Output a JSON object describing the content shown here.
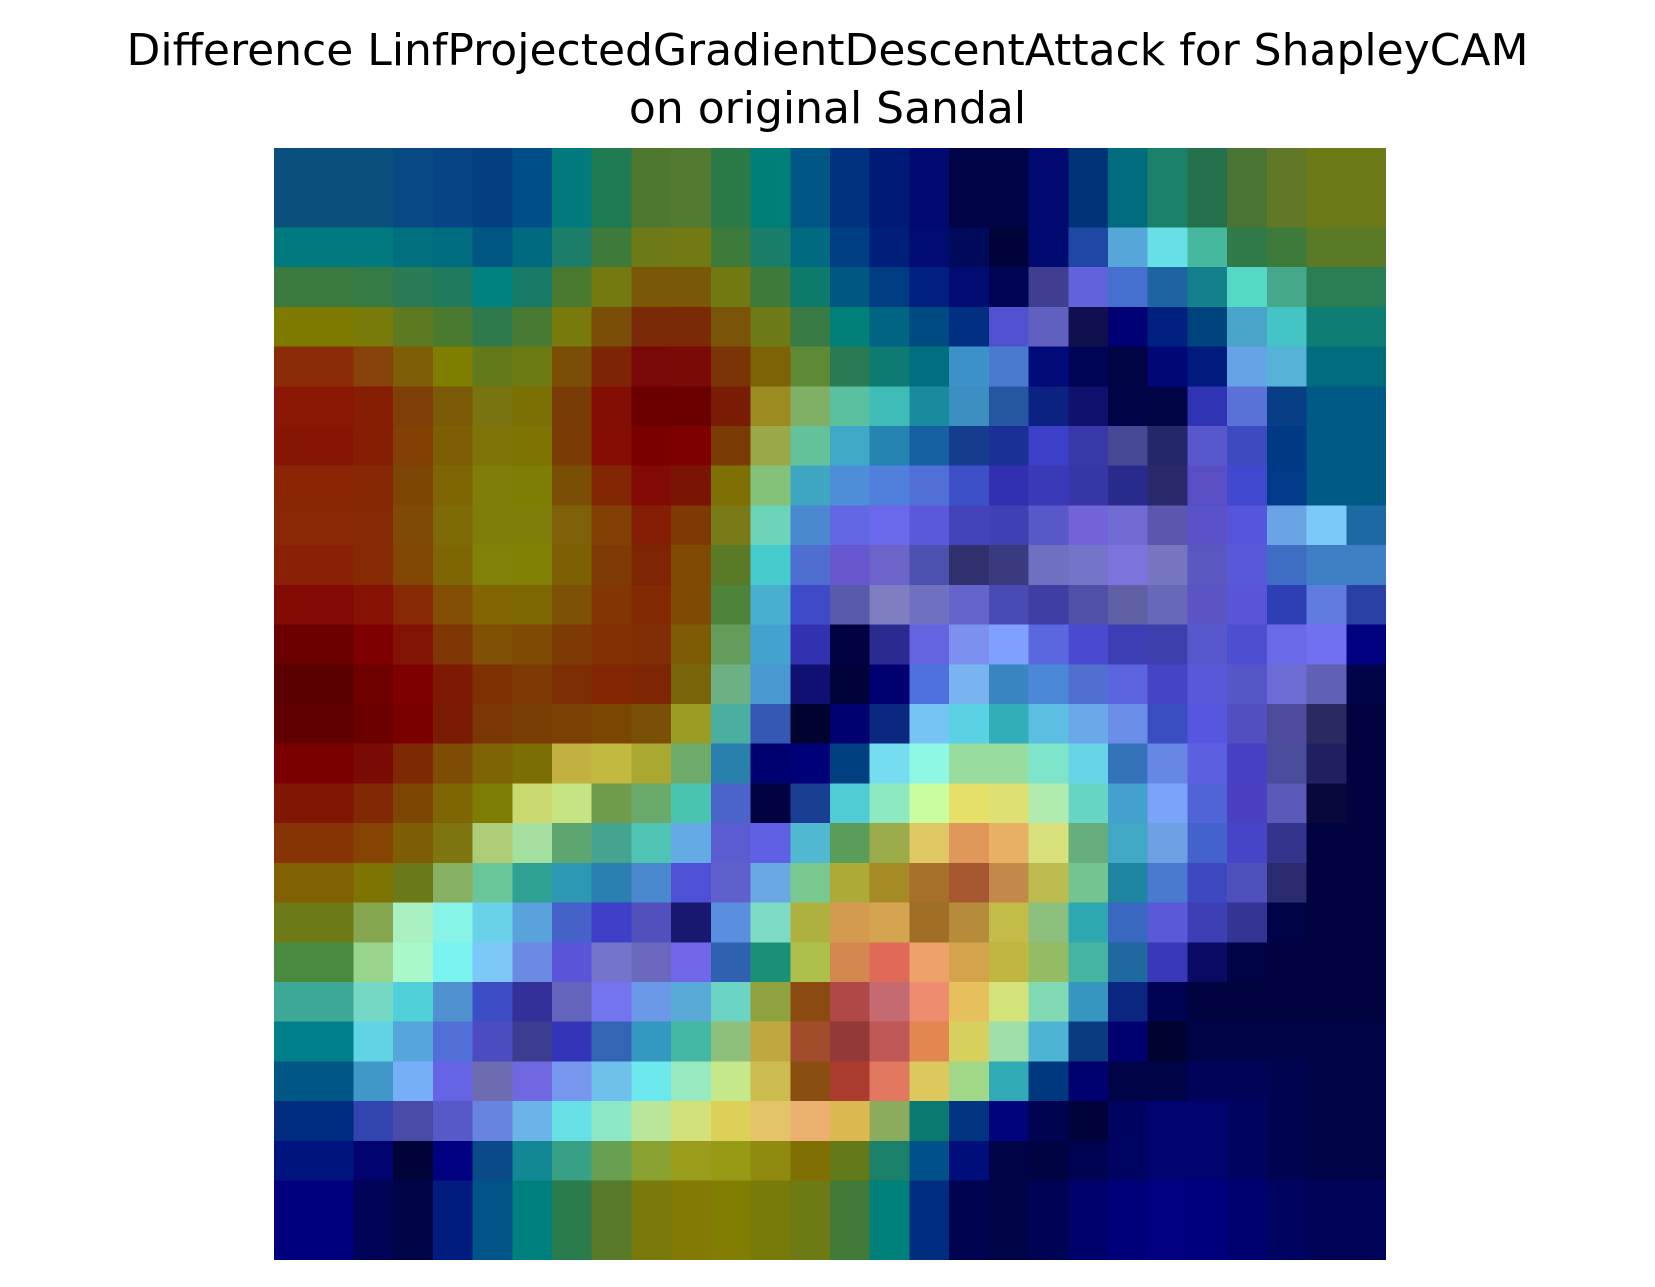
{
  "chart_data": {
    "type": "heatmap",
    "title": "Difference LinfProjectedGradientDescentAttack for ShapleyCAM",
    "subtitle": "on original Sandal",
    "xlabel": "",
    "ylabel": "",
    "axes_visible": false,
    "grid": false,
    "legend": "none",
    "rows": 28,
    "cols": 28,
    "colormap": "jet (blended over image)",
    "hex_grid": [
      [
        "#0a4f7e",
        "#0a4f7e",
        "#0a4f7e",
        "#084883",
        "#064485",
        "#043f82",
        "#004e88",
        "#007a7c",
        "#1e7a50",
        "#4e7830",
        "#527a30",
        "#2a7a48",
        "#007e78",
        "#005684",
        "#003280",
        "#001a78",
        "#000a70",
        "#000346",
        "#000346",
        "#000a70",
        "#003478",
        "#006c7e",
        "#1a8068",
        "#24704a",
        "#4a7434",
        "#607828",
        "#6e7a18",
        "#6e7a18"
      ],
      [
        "#0a4f7e",
        "#0a4f7e",
        "#0a4f7e",
        "#084883",
        "#064485",
        "#043f82",
        "#004e88",
        "#007a7c",
        "#1e7a50",
        "#4e7830",
        "#527a30",
        "#2a7a48",
        "#007e78",
        "#005684",
        "#003280",
        "#001a78",
        "#000a70",
        "#000346",
        "#000346",
        "#000a70",
        "#003478",
        "#006c7e",
        "#1a8068",
        "#24704a",
        "#4a7434",
        "#607828",
        "#6e7a18",
        "#6e7a18"
      ],
      [
        "#007a7e",
        "#007a7e",
        "#007a7e",
        "#00707e",
        "#006c80",
        "#005682",
        "#006a80",
        "#1a7e6a",
        "#3e7a3a",
        "#6e7a18",
        "#727a14",
        "#3e7a3a",
        "#187e6a",
        "#006a80",
        "#003e84",
        "#001f7a",
        "#000c72",
        "#000a5a",
        "#00033a",
        "#000a70",
        "#1f48a6",
        "#56a6da",
        "#66e0e6",
        "#46b89e",
        "#2f7a48",
        "#3e7a3a",
        "#5a7a28",
        "#5a7a28"
      ],
      [
        "#3b7a3e",
        "#3b7a3e",
        "#347a44",
        "#2a7a54",
        "#1f7a5e",
        "#008280",
        "#1a7a68",
        "#4a7a30",
        "#727a10",
        "#7a5808",
        "#7a5808",
        "#707a10",
        "#3e7a3a",
        "#0e7a6a",
        "#005882",
        "#003c82",
        "#002080",
        "#000c72",
        "#000452",
        "#403e8e",
        "#6262dc",
        "#4670d0",
        "#1e64a0",
        "#14808e",
        "#56d8c6",
        "#46a88a",
        "#2a7e54",
        "#2a7e54"
      ],
      [
        "#7e7a00",
        "#7e7a00",
        "#787a0a",
        "#5e7a20",
        "#4a7a30",
        "#2e7a4c",
        "#487a34",
        "#787a0c",
        "#7a4e08",
        "#7a2a06",
        "#7a2a04",
        "#7a5408",
        "#6e7a18",
        "#387a44",
        "#008078",
        "#006482",
        "#004a84",
        "#002e80",
        "#5050d0",
        "#6060c0",
        "#101050",
        "#000075",
        "#002080",
        "#00447e",
        "#48a4c8",
        "#44c4c4",
        "#0e7e74",
        "#0e7e74"
      ],
      [
        "#8a2c06",
        "#8a2c06",
        "#864208",
        "#7e5e06",
        "#7e7e00",
        "#627a1a",
        "#6e7a12",
        "#7a4e06",
        "#7e2406",
        "#7a0808",
        "#7a0a08",
        "#7a3406",
        "#7e6206",
        "#5e8a36",
        "#2a7a54",
        "#0e7a72",
        "#007080",
        "#3c92c8",
        "#4a7ad0",
        "#000a78",
        "#000454",
        "#000344",
        "#000878",
        "#001a7e",
        "#66a2e6",
        "#56b2d6",
        "#006c7e",
        "#006c7e"
      ],
      [
        "#8a1604",
        "#8a1604",
        "#861e04",
        "#7e3e06",
        "#7a5a06",
        "#7a7410",
        "#7a7004",
        "#7a3c06",
        "#820e04",
        "#6a0000",
        "#6a0000",
        "#7a1c04",
        "#9a8c20",
        "#80b066",
        "#5ac0a0",
        "#40bcb8",
        "#1a8a9e",
        "#3c8ec0",
        "#2456a2",
        "#0c2282",
        "#10106e",
        "#000346",
        "#000344",
        "#2e34b4",
        "#5a72d8",
        "#083e86",
        "#005a86",
        "#005a86"
      ],
      [
        "#861504",
        "#861504",
        "#861e04",
        "#824004",
        "#7e5e04",
        "#7e7408",
        "#7e7404",
        "#7a3c04",
        "#840e04",
        "#7a0000",
        "#7e0000",
        "#7a3c04",
        "#9aa848",
        "#64c29a",
        "#3ea8c6",
        "#2684b0",
        "#1860a4",
        "#163c8e",
        "#1a3096",
        "#3c40c8",
        "#3838a8",
        "#464894",
        "#24286a",
        "#5858cc",
        "#3c4cc0",
        "#003a84",
        "#005a86",
        "#005a86"
      ],
      [
        "#8a2604",
        "#8a2604",
        "#862804",
        "#7e4604",
        "#7e6604",
        "#7e7e08",
        "#7e7e04",
        "#7a4e04",
        "#822604",
        "#820a04",
        "#7a1404",
        "#7e7004",
        "#84c27a",
        "#3ea6c0",
        "#4e8ed8",
        "#5080dc",
        "#5070d8",
        "#3e50c8",
        "#3230b0",
        "#3a3ab8",
        "#3636a8",
        "#282a8c",
        "#282a6c",
        "#5a4ec4",
        "#4048d0",
        "#003a88",
        "#005a86",
        "#005a86"
      ],
      [
        "#8a2806",
        "#8a2806",
        "#862a06",
        "#7e4a06",
        "#7e6a06",
        "#7e7e0a",
        "#7e7e08",
        "#7e6008",
        "#824004",
        "#841e04",
        "#7e3a04",
        "#7a7a18",
        "#6cd4b8",
        "#4a88d0",
        "#6268e4",
        "#6c68ec",
        "#5c58dc",
        "#4442b8",
        "#4040b4",
        "#5858c8",
        "#7264d8",
        "#706cd4",
        "#5a58ac",
        "#5a52c8",
        "#5656dc",
        "#6aa4e4",
        "#7cc8f8",
        "#1e68a4"
      ],
      [
        "#8a2006",
        "#8a2006",
        "#862a04",
        "#824604",
        "#7e6604",
        "#808208",
        "#808004",
        "#7e6004",
        "#7e3c04",
        "#7e2604",
        "#7e4a04",
        "#5a7a28",
        "#46cccc",
        "#4e6ed0",
        "#6858d0",
        "#6c64c8",
        "#4e50b0",
        "#30306e",
        "#3a3a80",
        "#7070c0",
        "#7474c8",
        "#7a74dc",
        "#7676c0",
        "#5a58c0",
        "#5858d8",
        "#3e6ec4",
        "#3e7ec4",
        "#3e7ec4"
      ],
      [
        "#820a04",
        "#820a04",
        "#861204",
        "#862a04",
        "#824e04",
        "#826604",
        "#7e6804",
        "#7e5204",
        "#823604",
        "#822a04",
        "#7e4a04",
        "#4e843a",
        "#4aaed0",
        "#3e4ac8",
        "#5a5aac",
        "#7e7ec0",
        "#7070c0",
        "#6464cc",
        "#4a4ab4",
        "#3e3ea4",
        "#5050a8",
        "#6060a4",
        "#6868b8",
        "#5a54c4",
        "#5a54d8",
        "#2e3eb4",
        "#607ce0",
        "#2a40a4"
      ],
      [
        "#6a0000",
        "#6a0000",
        "#7e0000",
        "#821204",
        "#7e3604",
        "#805004",
        "#7e4a04",
        "#7e3a04",
        "#823004",
        "#822e04",
        "#7e5c04",
        "#649c5c",
        "#44a2d0",
        "#3232b0",
        "#000340",
        "#2a2a90",
        "#6464e0",
        "#7c90f0",
        "#80a0ff",
        "#5a68e0",
        "#4a4ad0",
        "#3e3eb4",
        "#3e3eac",
        "#5858cc",
        "#4e4ed0",
        "#6a6ae8",
        "#7070f0",
        "#000080"
      ],
      [
        "#5a0000",
        "#5a0000",
        "#6e0000",
        "#7e0000",
        "#7e1a04",
        "#7e3204",
        "#7e3a04",
        "#7e2e04",
        "#822604",
        "#7e2604",
        "#7a6408",
        "#6cb084",
        "#4a98d0",
        "#101072",
        "#00033a",
        "#000070",
        "#4e70dc",
        "#78b4f0",
        "#3a84c0",
        "#4c88d8",
        "#5070d0",
        "#5c64e0",
        "#4444c4",
        "#5858d8",
        "#5656c8",
        "#6c6cd4",
        "#6060b4",
        "#000348"
      ],
      [
        "#600000",
        "#600000",
        "#6c0000",
        "#7a0000",
        "#7a1c04",
        "#7a3604",
        "#7a3e04",
        "#7a4004",
        "#7a4604",
        "#7a5008",
        "#9a9c24",
        "#4aaea0",
        "#3458b4",
        "#000330",
        "#000070",
        "#0a2880",
        "#76c4f4",
        "#5ad2e4",
        "#32aeb8",
        "#5cbee2",
        "#6aa8e8",
        "#6a8ee8",
        "#3a4ec0",
        "#5656e0",
        "#5250c0",
        "#4e4a9c",
        "#2a2a60",
        "#000340"
      ],
      [
        "#7a0000",
        "#7a0000",
        "#7a0a04",
        "#7e2804",
        "#7e4c04",
        "#7e6404",
        "#7a6e04",
        "#c2b040",
        "#c2ba40",
        "#aaa830",
        "#6eaa6a",
        "#2a80ac",
        "#000070",
        "#000078",
        "#004080",
        "#76dcf0",
        "#8ef8e4",
        "#98dca0",
        "#98dca0",
        "#7ee4ca",
        "#68d4e8",
        "#3472ba",
        "#6688e4",
        "#5c60e0",
        "#4840c4",
        "#4c4c9c",
        "#202060",
        "#000340"
      ],
      [
        "#821604",
        "#821604",
        "#822804",
        "#7e4604",
        "#7e6604",
        "#7e7e04",
        "#cad870",
        "#c6e484",
        "#6e9c4a",
        "#6aaa6a",
        "#48c4b0",
        "#4a64cc",
        "#000340",
        "#1a3e92",
        "#50ccd4",
        "#8ee8c0",
        "#cafca0",
        "#e4e068",
        "#dee074",
        "#b0ecb0",
        "#68d4c4",
        "#44a0cc",
        "#7aa4f8",
        "#5064d8",
        "#4840c0",
        "#5a58b8",
        "#08083c",
        "#000340"
      ],
      [
        "#863404",
        "#863404",
        "#864404",
        "#7e5e04",
        "#7e7410",
        "#aecc78",
        "#a6e0a0",
        "#5ea670",
        "#44a490",
        "#50c4b4",
        "#64aae4",
        "#5a5cd0",
        "#6060e4",
        "#50b8d0",
        "#5a9c5a",
        "#9aac4a",
        "#e0c864",
        "#e0985a",
        "#e8b064",
        "#d8e07c",
        "#66ae7c",
        "#40a8c4",
        "#6ea0e4",
        "#4462cc",
        "#4844c8",
        "#34348c",
        "#000340",
        "#000340"
      ],
      [
        "#826004",
        "#826004",
        "#7e7404",
        "#6a7a18",
        "#86b062",
        "#6ac698",
        "#2ea094",
        "#2c98b4",
        "#2a80b0",
        "#4a88d0",
        "#4e50d8",
        "#6060cc",
        "#6aa8e4",
        "#78c890",
        "#aeaa38",
        "#a68a24",
        "#a6702a",
        "#a85830",
        "#c4884a",
        "#bcbc50",
        "#74c490",
        "#1e84a0",
        "#4a7ad0",
        "#3e48c0",
        "#5050bc",
        "#2a2a70",
        "#000340",
        "#000340"
      ],
      [
        "#6e7a18",
        "#6e7a18",
        "#86a650",
        "#aaf0c0",
        "#88f4e8",
        "#6ad2e8",
        "#5aa2dc",
        "#4462c8",
        "#3e3ec8",
        "#5250bc",
        "#181870",
        "#5a8ede",
        "#7edcc4",
        "#aeb040",
        "#d49a50",
        "#d4a450",
        "#a06e24",
        "#b68c3c",
        "#c4bc48",
        "#8cc07c",
        "#2ea8b0",
        "#3868c0",
        "#5a5ad8",
        "#3e3eb4",
        "#343494",
        "#000348",
        "#000340",
        "#000340"
      ],
      [
        "#4a8a40",
        "#4a8a40",
        "#98d48c",
        "#a8f8cc",
        "#7af4f0",
        "#7ec8f8",
        "#6a8ae4",
        "#5a54d8",
        "#7474cc",
        "#6a68bc",
        "#7068e8",
        "#2e62b0",
        "#1a9078",
        "#aec04c",
        "#d48850",
        "#e06a58",
        "#eca26a",
        "#d4a44c",
        "#c0b640",
        "#94bc64",
        "#46b4a0",
        "#2068a0",
        "#3838b8",
        "#0a0a64",
        "#000346",
        "#000340",
        "#000340",
        "#000340"
      ],
      [
        "#3ea896",
        "#3ea896",
        "#74d8c4",
        "#50d0d8",
        "#5092d0",
        "#3c4cc4",
        "#34309a",
        "#6464bc",
        "#7474f0",
        "#6c98e8",
        "#5aaad8",
        "#6cd4c4",
        "#8ea240",
        "#8a4a10",
        "#b04848",
        "#c46a70",
        "#ee8c70",
        "#e6c05c",
        "#d4e47a",
        "#82dab4",
        "#3696c0",
        "#0a2680",
        "#000352",
        "#000340",
        "#000340",
        "#000340",
        "#000340",
        "#000340"
      ],
      [
        "#007e8a",
        "#007e8a",
        "#60d4e4",
        "#56a6dc",
        "#5070d8",
        "#4c4cc0",
        "#3c3c90",
        "#3434b8",
        "#3464b4",
        "#3498c0",
        "#44b8a4",
        "#8ec07c",
        "#c0a840",
        "#a24c2c",
        "#943838",
        "#c05858",
        "#e08850",
        "#d8d05c",
        "#9ee0a8",
        "#4eb4d4",
        "#0a3a80",
        "#000070",
        "#000330",
        "#000348",
        "#000348",
        "#000348",
        "#000348",
        "#000348"
      ],
      [
        "#005684",
        "#005684",
        "#4098c8",
        "#76aef8",
        "#6664e4",
        "#6e6cb0",
        "#7068e0",
        "#7898f0",
        "#70c0ec",
        "#6ce8ec",
        "#98e8c0",
        "#c4e88a",
        "#ccbc50",
        "#8a4e10",
        "#ac3c30",
        "#e27860",
        "#dcc85c",
        "#a0d888",
        "#30aab4",
        "#003880",
        "#000070",
        "#000348",
        "#000348",
        "#000358",
        "#000358",
        "#000350",
        "#000348",
        "#000348"
      ],
      [
        "#002c80",
        "#002c80",
        "#3244b0",
        "#4a4aa8",
        "#5858c8",
        "#6684e0",
        "#6ab4e8",
        "#68e0e8",
        "#8ee8c8",
        "#b8e69a",
        "#d4e078",
        "#dcd058",
        "#e4c468",
        "#ecb070",
        "#dcb850",
        "#8aac5c",
        "#0a7a70",
        "#003480",
        "#00037a",
        "#000350",
        "#000338",
        "#000360",
        "#000370",
        "#000370",
        "#000360",
        "#000350",
        "#000348",
        "#000348"
      ],
      [
        "#001480",
        "#001480",
        "#000370",
        "#000338",
        "#000080",
        "#0a4a88",
        "#128894",
        "#38a084",
        "#66a050",
        "#8aa232",
        "#9a9c1c",
        "#969a14",
        "#908a10",
        "#807004",
        "#627a1a",
        "#1a806a",
        "#00508a",
        "#000e7c",
        "#000348",
        "#000342",
        "#000352",
        "#000362",
        "#000370",
        "#000370",
        "#000360",
        "#000350",
        "#000348",
        "#000348"
      ],
      [
        "#00007e",
        "#00007e",
        "#000356",
        "#000348",
        "#001c7e",
        "#005488",
        "#00807c",
        "#2a7c4c",
        "#587a2a",
        "#7a7a0c",
        "#827a04",
        "#827e04",
        "#787a0a",
        "#6e7a14",
        "#427a38",
        "#00807a",
        "#002c80",
        "#000350",
        "#000348",
        "#000354",
        "#00006a",
        "#00007a",
        "#000080",
        "#00007e",
        "#000070",
        "#000360",
        "#000358",
        "#000358"
      ],
      [
        "#00007e",
        "#00007e",
        "#000356",
        "#000348",
        "#001c7e",
        "#005488",
        "#00807c",
        "#2a7c4c",
        "#587a2a",
        "#7a7a0c",
        "#827a04",
        "#827e04",
        "#787a0a",
        "#6e7a14",
        "#427a38",
        "#00807a",
        "#002c80",
        "#000350",
        "#000348",
        "#000354",
        "#00006a",
        "#00007a",
        "#000080",
        "#00007e",
        "#000070",
        "#000360",
        "#000358",
        "#000358"
      ]
    ]
  }
}
